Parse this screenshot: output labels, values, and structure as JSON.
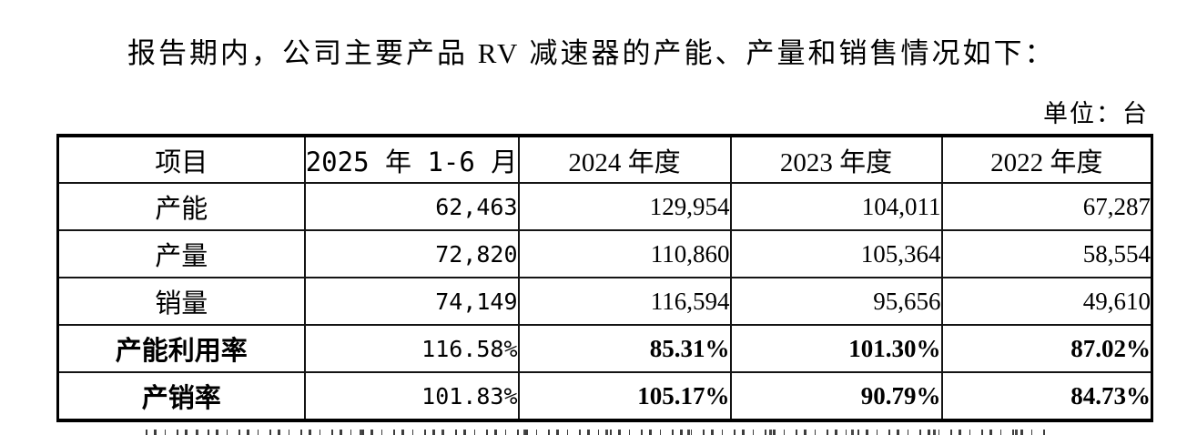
{
  "page": {
    "intro_paragraph": "报告期内，公司主要产品 RV 减速器的产能、产量和销售情况如下：",
    "unit_note": "单位：台"
  },
  "table": {
    "columns": [
      {
        "label": "项目",
        "bold": true
      },
      {
        "label": "2025 年 1-6 月",
        "bold": false
      },
      {
        "label": "2024 年度",
        "bold": true
      },
      {
        "label": "2023 年度",
        "bold": true
      },
      {
        "label": "2022 年度",
        "bold": true
      }
    ],
    "rows": [
      {
        "label": "产能",
        "label_bold": false,
        "values_bold": false,
        "values": [
          "62,463",
          "129,954",
          "104,011",
          "67,287"
        ]
      },
      {
        "label": "产量",
        "label_bold": false,
        "values_bold": false,
        "values": [
          "72,820",
          "110,860",
          "105,364",
          "58,554"
        ]
      },
      {
        "label": "销量",
        "label_bold": false,
        "values_bold": false,
        "values": [
          "74,149",
          "116,594",
          "95,656",
          "49,610"
        ]
      },
      {
        "label": "产能利用率",
        "label_bold": true,
        "values_bold": true,
        "values": [
          "116.58%",
          "85.31%",
          "101.30%",
          "87.02%"
        ]
      },
      {
        "label": "产销率",
        "label_bold": true,
        "values_bold": true,
        "values": [
          "101.83%",
          "105.17%",
          "90.79%",
          "84.73%"
        ]
      }
    ]
  }
}
